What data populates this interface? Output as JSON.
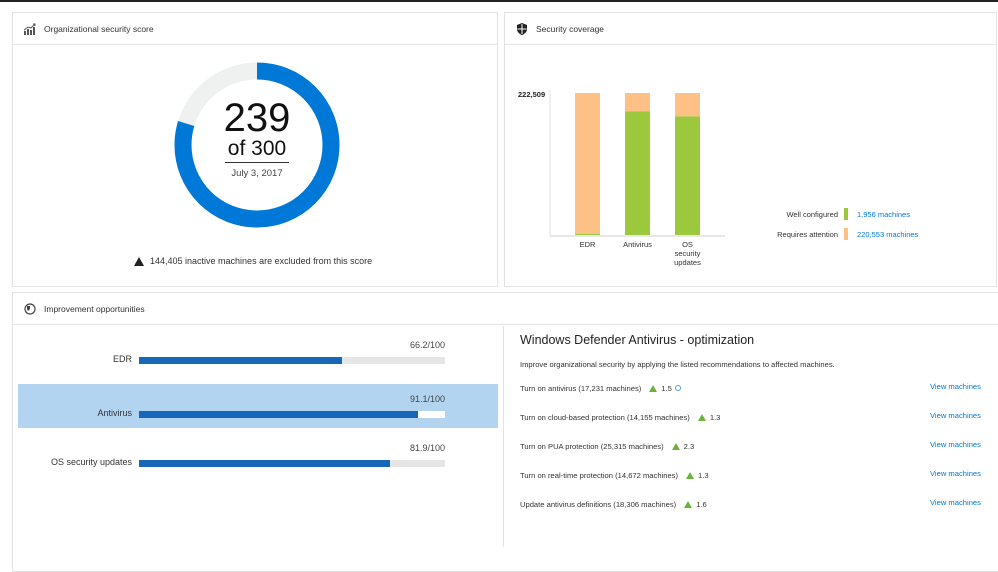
{
  "score_card": {
    "title": "Organizational security score",
    "icon": "trend-chart-icon",
    "score": "239",
    "out_of": "of 300",
    "score_value": 239,
    "score_max": 300,
    "date": "July 3, 2017",
    "warning": "144,405 inactive machines are excluded from this score",
    "colors": {
      "fill": "#0078d7",
      "track": "#eff0f0"
    }
  },
  "coverage_card": {
    "title": "Security coverage",
    "icon": "shield-icon",
    "legend": [
      {
        "label": "Well configured",
        "value": "1,956 machines",
        "color": "#9bc83c"
      },
      {
        "label": "Requires attention",
        "value": "220,553 machines",
        "color": "#fdc085"
      }
    ]
  },
  "chart_data": {
    "type": "bar",
    "stacked": true,
    "categories": [
      "EDR",
      "Antivirus",
      "OS security updates"
    ],
    "category_labels": [
      [
        "EDR"
      ],
      [
        "Antivirus"
      ],
      [
        "OS",
        "security",
        "updates"
      ]
    ],
    "y_max_label": "222,509",
    "ylim": [
      0,
      222509
    ],
    "series": [
      {
        "name": "Well configured",
        "color": "#9bc83c",
        "values": [
          1956,
          194000,
          186000
        ]
      },
      {
        "name": "Requires attention",
        "color": "#fdc085",
        "values": [
          220553,
          28509,
          36509
        ]
      }
    ]
  },
  "improvement_card": {
    "title": "Improvement opportunities",
    "icon": "improvement-icon",
    "bars": [
      {
        "label": "EDR",
        "value_text": "66.2/100",
        "value": 66.2,
        "selected": false
      },
      {
        "label": "Antivirus",
        "value_text": "91.1/100",
        "value": 91.1,
        "selected": true
      },
      {
        "label": "OS security updates",
        "value_text": "81.9/100",
        "value": 81.9,
        "selected": false
      }
    ],
    "detail": {
      "title": "Windows Defender Antivirus - optimization",
      "description": "Improve organizational security by applying the listed recommendations to affected machines.",
      "recommendations": [
        {
          "text": "Turn on antivirus (17,231 machines)",
          "impact": "1.5",
          "info": true,
          "link": "View machines"
        },
        {
          "text": "Turn on cloud-based protection (14,155 machines)",
          "impact": "1.3",
          "info": false,
          "link": "View machines"
        },
        {
          "text": "Turn on PUA protection (25,315 machines)",
          "impact": "2.3",
          "info": false,
          "link": "View machines"
        },
        {
          "text": "Turn on real-time protection (14,672 machines)",
          "impact": "1.3",
          "info": false,
          "link": "View machines"
        },
        {
          "text": "Update antivirus definitions (18,306 machines)",
          "impact": "1.6",
          "info": false,
          "link": "View machines"
        }
      ]
    }
  }
}
